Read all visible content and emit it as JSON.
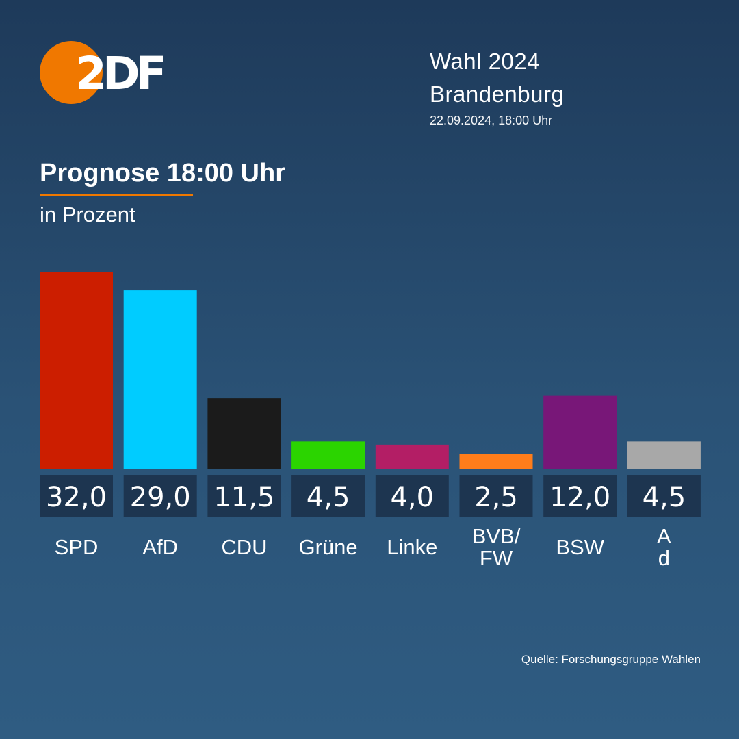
{
  "brand": {
    "logo_text": "2DF",
    "logo_color": "#f07800"
  },
  "header": {
    "line1": "Wahl 2024",
    "line2": "Brandenburg",
    "date": "22.09.2024, 18:00 Uhr"
  },
  "source": "Quelle: Forschungsgruppe Wahlen",
  "chart_data": {
    "type": "bar",
    "title": "Prognose 18:00 Uhr",
    "subtitle": "in Prozent",
    "ylim": [
      0,
      32
    ],
    "grid": false,
    "categories": [
      [
        "SPD"
      ],
      [
        "AfD"
      ],
      [
        "CDU"
      ],
      [
        "Grüne"
      ],
      [
        "Linke"
      ],
      [
        "BVB/",
        "FW"
      ],
      [
        "BSW"
      ],
      [
        "A",
        "d"
      ]
    ],
    "values": [
      32.0,
      29.0,
      11.5,
      4.5,
      4.0,
      2.5,
      12.0,
      4.5
    ],
    "value_labels": [
      "32,0",
      "29,0",
      "11,5",
      "4,5",
      "4,0",
      "2,5",
      "12,0",
      "4,5"
    ],
    "colors": [
      "#cc1e00",
      "#00ccff",
      "#1b1b1b",
      "#2bd400",
      "#b31e65",
      "#ff7d1a",
      "#781778",
      "#a8a8a8"
    ],
    "value_box_color": "#1d3550"
  }
}
